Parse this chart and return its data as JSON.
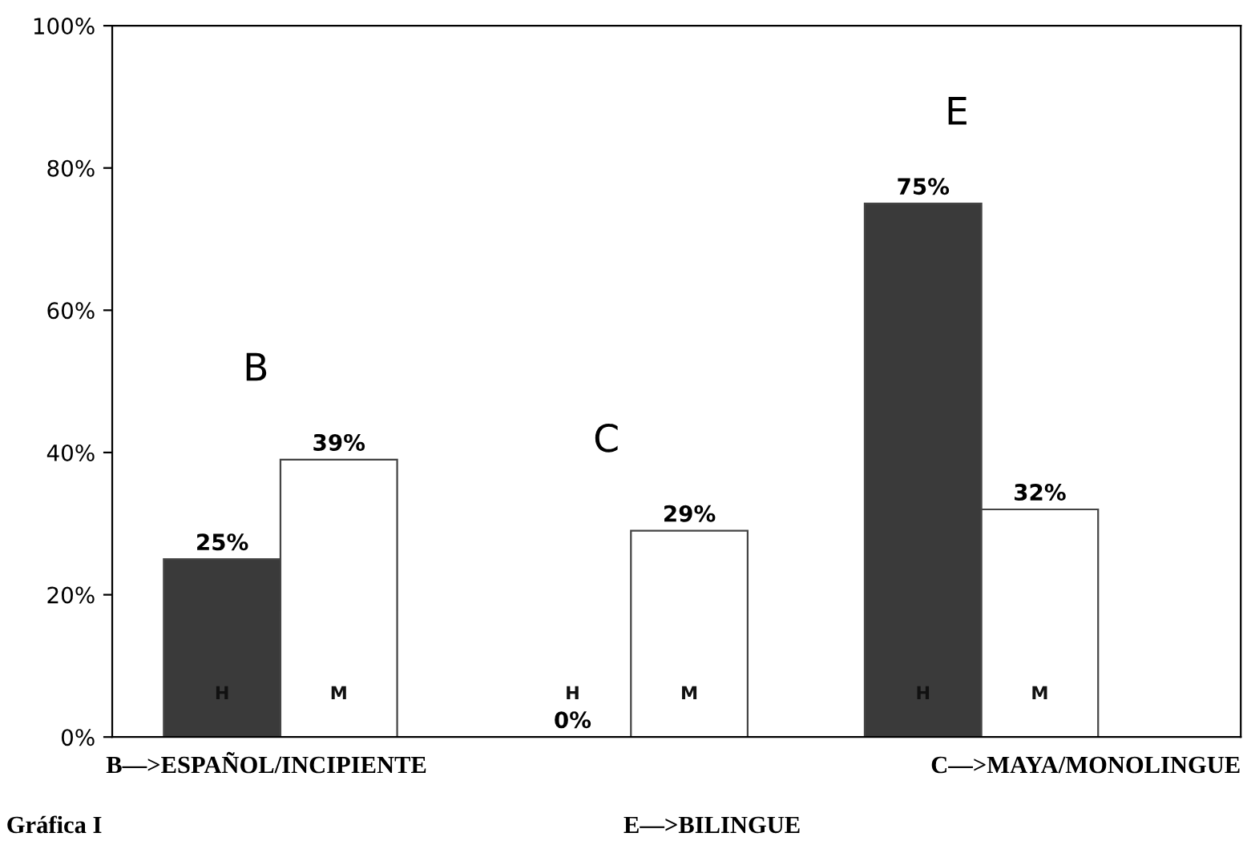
{
  "chart_data": {
    "type": "bar",
    "categories": [
      "B",
      "C",
      "E"
    ],
    "series": [
      {
        "name": "H",
        "color": "#3a3a3a",
        "values": [
          25,
          0,
          75
        ]
      },
      {
        "name": "M",
        "color": "#ffffff",
        "values": [
          39,
          29,
          32
        ]
      }
    ],
    "ylim": [
      0,
      100
    ],
    "yticks": [
      {
        "value": 0,
        "label": "0%"
      },
      {
        "value": 20,
        "label": "20%"
      },
      {
        "value": 40,
        "label": "40%"
      },
      {
        "value": 60,
        "label": "60%"
      },
      {
        "value": 80,
        "label": "80%"
      },
      {
        "value": 100,
        "label": "100%"
      }
    ],
    "value_labels": [
      [
        "25%",
        "0%",
        "75%"
      ],
      [
        "39%",
        "29%",
        "32%"
      ]
    ],
    "grid": false,
    "legend": false,
    "annotations": [
      "B—>ESPAÑOL/INCIPIENTE",
      "C—>MAYA/MONOLINGUE",
      "Gráfica I",
      "E—>BILINGUE"
    ]
  }
}
